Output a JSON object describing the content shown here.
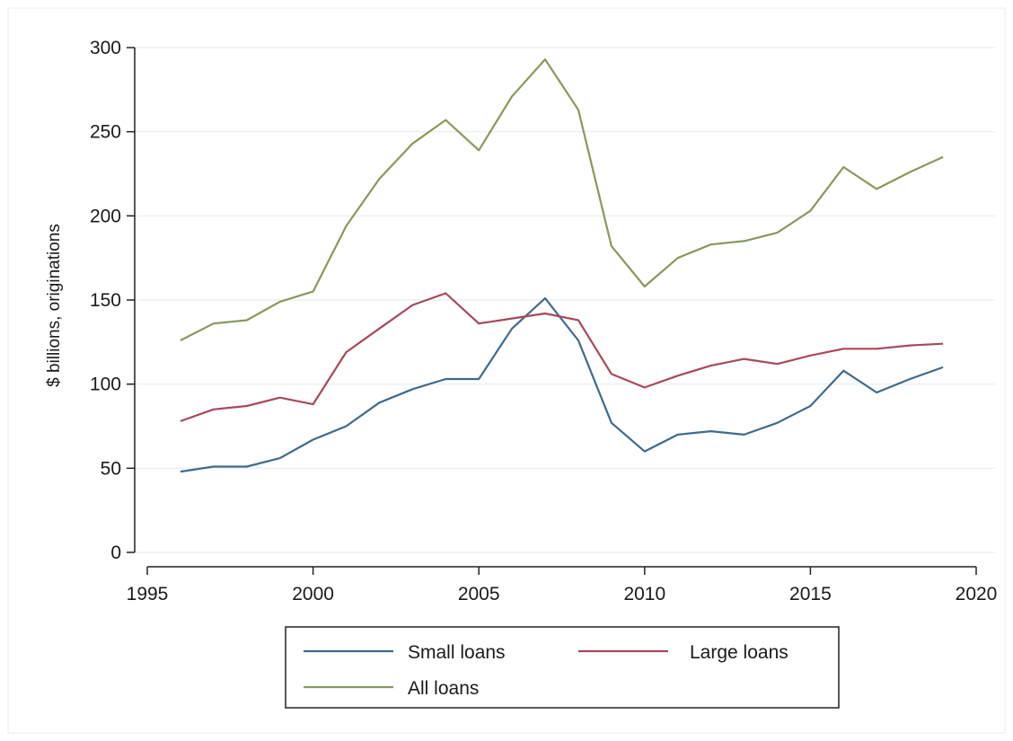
{
  "chart_data": {
    "type": "line",
    "xlabel": "",
    "ylabel": "$ billions, originations",
    "xlim": [
      1995,
      2020
    ],
    "ylim": [
      0,
      300
    ],
    "xticks": [
      1995,
      2000,
      2005,
      2010,
      2015,
      2020
    ],
    "yticks": [
      0,
      50,
      100,
      150,
      200,
      250,
      300
    ],
    "grid": "horizontal",
    "legend_position": "bottom",
    "x": [
      1996,
      1997,
      1998,
      1999,
      2000,
      2001,
      2002,
      2003,
      2004,
      2005,
      2006,
      2007,
      2008,
      2009,
      2010,
      2011,
      2012,
      2013,
      2014,
      2015,
      2016,
      2017,
      2018,
      2019
    ],
    "series": [
      {
        "name": "Small loans",
        "color": "#3e6b8c",
        "values": [
          48,
          51,
          51,
          56,
          67,
          75,
          89,
          97,
          103,
          103,
          133,
          151,
          126,
          77,
          60,
          70,
          72,
          70,
          77,
          87,
          108,
          95,
          103,
          110
        ]
      },
      {
        "name": "Large loans",
        "color": "#a8485a",
        "values": [
          78,
          85,
          87,
          92,
          88,
          119,
          133,
          147,
          154,
          136,
          139,
          142,
          138,
          106,
          98,
          105,
          111,
          115,
          112,
          117,
          121,
          121,
          123,
          124
        ]
      },
      {
        "name": "All loans",
        "color": "#879a5a",
        "values": [
          126,
          136,
          138,
          149,
          155,
          194,
          222,
          243,
          257,
          239,
          271,
          293,
          263,
          182,
          158,
          175,
          183,
          185,
          190,
          203,
          229,
          216,
          226,
          235
        ]
      }
    ]
  }
}
